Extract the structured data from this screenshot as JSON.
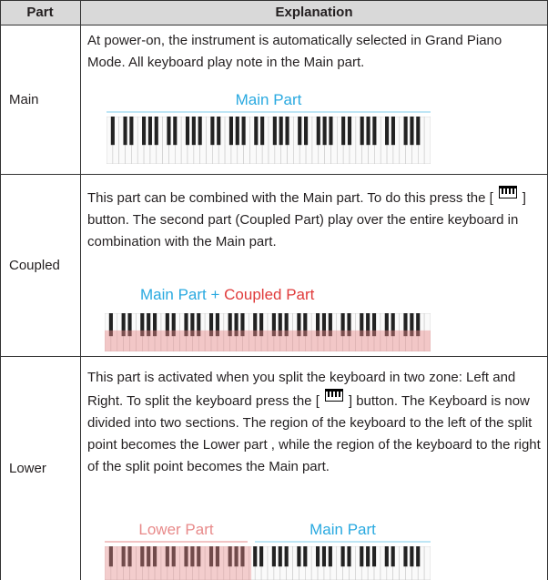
{
  "table": {
    "header": [
      "Part",
      "Explanation"
    ],
    "rows": [
      {
        "part": "Main",
        "text": [
          "At power-on, the instrument is automatically selected in Grand Piano Mode. All keyboard play note in the Main part."
        ],
        "labels": [
          "Main Part"
        ]
      },
      {
        "part": "Coupled",
        "text": [
          "This part can be combined with the Main part. To do this press the [",
          "] button. The second part (Coupled Part)  play over the entire keyboard in combination with the Main part."
        ],
        "labels": [
          "Main Part",
          "+",
          "Coupled Part"
        ]
      },
      {
        "part": "Lower",
        "text": [
          "This part is activated when you split the keyboard in two zone: Left and Right. To split the keyboard press the [",
          "] button. The Keyboard is now divided into two sections.  The region of the keyboard to the left of the split point becomes the Lower part , while the region of the keyboard to the right of the split point becomes the Main part."
        ],
        "labels": [
          "Lower Part",
          "Main Part"
        ]
      }
    ]
  }
}
